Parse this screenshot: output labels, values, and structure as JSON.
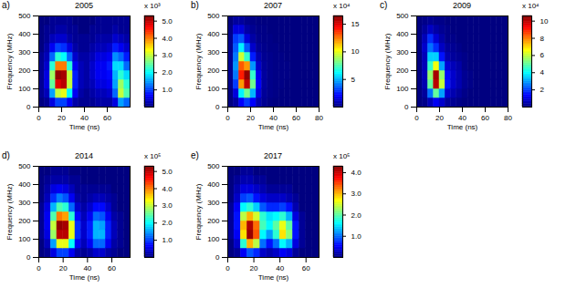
{
  "chart_data": [
    {
      "type": "heatmap",
      "title": "2005",
      "panel_label": "a)",
      "x_label": "Time (ns)",
      "y_label": "Frequency (MHz)",
      "xlim": [
        0,
        80
      ],
      "xticks": [
        0,
        20,
        40,
        60
      ],
      "ylim": [
        0,
        500
      ],
      "yticks": [
        0,
        100,
        200,
        300,
        400,
        500
      ],
      "x_bins": [
        0,
        5,
        10,
        15,
        20,
        25,
        30,
        35,
        40,
        45,
        50,
        55,
        60,
        65,
        70,
        75,
        80
      ],
      "y_bins": [
        0,
        50,
        100,
        150,
        200,
        250,
        300,
        350,
        400,
        450,
        500
      ],
      "cells": [
        [
          0,
          0.1,
          0.5,
          1.0,
          1.0,
          0.6,
          0.2,
          0.1,
          0.1,
          0.1,
          0.2,
          0.2,
          0.2,
          0.5,
          1.5,
          1.2
        ],
        [
          0.1,
          0.3,
          1.5,
          3.0,
          3.2,
          2.0,
          0.6,
          0.2,
          0.1,
          0.2,
          0.3,
          0.3,
          0.4,
          1.2,
          3.0,
          2.4
        ],
        [
          0.1,
          0.5,
          2.5,
          4.8,
          5.0,
          3.0,
          0.8,
          0.3,
          0.2,
          0.3,
          0.5,
          0.5,
          0.6,
          1.5,
          2.8,
          2.2
        ],
        [
          0.1,
          0.5,
          2.8,
          5.2,
          5.1,
          3.0,
          0.8,
          0.3,
          0.2,
          0.4,
          0.6,
          0.6,
          0.7,
          1.6,
          2.2,
          1.8
        ],
        [
          0.1,
          0.4,
          2.2,
          4.0,
          4.0,
          2.2,
          0.6,
          0.3,
          0.2,
          0.4,
          0.6,
          0.6,
          0.8,
          1.8,
          1.8,
          1.2
        ],
        [
          0.1,
          0.3,
          1.2,
          2.2,
          2.0,
          1.2,
          0.4,
          0.2,
          0.2,
          0.3,
          0.5,
          0.5,
          0.6,
          1.4,
          1.2,
          0.8
        ],
        [
          0,
          0.2,
          0.6,
          1.0,
          0.9,
          0.5,
          0.2,
          0.1,
          0.1,
          0.2,
          0.3,
          0.3,
          0.4,
          0.8,
          0.6,
          0.4
        ],
        [
          0,
          0.1,
          0.3,
          0.4,
          0.4,
          0.2,
          0.1,
          0.1,
          0.1,
          0.1,
          0.2,
          0.2,
          0.2,
          0.4,
          0.3,
          0.2
        ],
        [
          0,
          0.1,
          0.1,
          0.2,
          0.2,
          0.1,
          0.1,
          0,
          0,
          0.1,
          0.1,
          0.1,
          0.1,
          0.2,
          0.1,
          0.1
        ],
        [
          0,
          0,
          0.1,
          0.1,
          0.1,
          0.1,
          0,
          0,
          0,
          0,
          0.1,
          0.1,
          0.1,
          0.1,
          0.1,
          0.1
        ]
      ],
      "colorbar_range": [
        0,
        5.3
      ],
      "colorbar_ticks": [
        1,
        2,
        3,
        4,
        5
      ],
      "colorbar_label": "x 10³"
    },
    {
      "type": "heatmap",
      "title": "2007",
      "panel_label": "b)",
      "x_label": "Time (ns)",
      "y_label": "Frequency (MHz)",
      "xlim": [
        0,
        80
      ],
      "xticks": [
        0,
        20,
        40,
        60,
        80
      ],
      "ylim": [
        0,
        500
      ],
      "yticks": [
        0,
        100,
        200,
        300,
        400,
        500
      ],
      "x_bins": [
        0,
        5,
        10,
        15,
        20,
        25,
        30,
        35,
        40,
        45,
        50,
        55,
        60,
        65,
        70,
        75,
        80
      ],
      "y_bins": [
        0,
        50,
        100,
        150,
        200,
        250,
        300,
        350,
        400,
        450,
        500
      ],
      "cells": [
        [
          0,
          0.5,
          2.0,
          3.0,
          2.0,
          0.8,
          0.3,
          0.1,
          0,
          0,
          0,
          0,
          0,
          0,
          0,
          0
        ],
        [
          0,
          1.5,
          6.0,
          8.0,
          5.0,
          1.5,
          0.4,
          0.2,
          0.1,
          0,
          0,
          0,
          0,
          0,
          0,
          0
        ],
        [
          0.2,
          3.0,
          12.0,
          15.5,
          8.0,
          2.0,
          0.5,
          0.2,
          0.1,
          0.1,
          0,
          0,
          0,
          0,
          0,
          0
        ],
        [
          0.3,
          4.0,
          14.0,
          16.2,
          7.0,
          1.8,
          0.5,
          0.2,
          0.1,
          0.1,
          0.1,
          0,
          0,
          0,
          0,
          0
        ],
        [
          0.3,
          4.5,
          13.0,
          12.0,
          4.5,
          1.2,
          0.4,
          0.2,
          0.1,
          0.1,
          0.1,
          0,
          0,
          0,
          0,
          0
        ],
        [
          0.3,
          4.0,
          9.5,
          7.0,
          2.5,
          0.8,
          0.3,
          0.2,
          0.1,
          0.1,
          0,
          0,
          0,
          0,
          0,
          0
        ],
        [
          0.2,
          3.5,
          6.0,
          3.5,
          1.2,
          0.4,
          0.2,
          0.1,
          0.1,
          0,
          0,
          0,
          0,
          0,
          0,
          0
        ],
        [
          0.2,
          3.0,
          3.5,
          1.5,
          0.6,
          0.2,
          0.1,
          0.1,
          0,
          0,
          0,
          0,
          0,
          0,
          0,
          0
        ],
        [
          0.1,
          1.5,
          1.5,
          0.6,
          0.3,
          0.1,
          0.1,
          0,
          0,
          0,
          0,
          0,
          0,
          0,
          0,
          0
        ],
        [
          0,
          0.5,
          0.5,
          0.2,
          0.1,
          0,
          0,
          0,
          0,
          0,
          0,
          0,
          0,
          0,
          0,
          0
        ]
      ],
      "colorbar_range": [
        0,
        16.5
      ],
      "colorbar_ticks": [
        5,
        10,
        15
      ],
      "colorbar_label": "x 10⁴"
    },
    {
      "type": "heatmap",
      "title": "2009",
      "panel_label": "c)",
      "x_label": "Time (ns)",
      "y_label": "Frequency (MHz)",
      "xlim": [
        0,
        80
      ],
      "xticks": [
        0,
        20,
        40,
        60,
        80
      ],
      "ylim": [
        0,
        500
      ],
      "yticks": [
        0,
        100,
        200,
        300,
        400,
        500
      ],
      "x_bins": [
        0,
        5,
        10,
        15,
        20,
        25,
        30,
        35,
        40,
        45,
        50,
        55,
        60,
        65,
        70,
        75,
        80
      ],
      "y_bins": [
        0,
        50,
        100,
        150,
        200,
        250,
        300,
        350,
        400,
        450,
        500
      ],
      "cells": [
        [
          0,
          0.1,
          0.6,
          1.2,
          0.8,
          0.3,
          0.2,
          0.1,
          0,
          0,
          0,
          0,
          0,
          0,
          0,
          0
        ],
        [
          0,
          0.3,
          2.5,
          5.0,
          3.0,
          0.8,
          0.5,
          0.3,
          0.1,
          0,
          0,
          0,
          0,
          0,
          0,
          0
        ],
        [
          0,
          0.5,
          5.0,
          10.0,
          6.0,
          1.5,
          0.8,
          0.5,
          0.2,
          0.1,
          0,
          0,
          0,
          0,
          0,
          0
        ],
        [
          0,
          0.6,
          5.5,
          10.2,
          5.5,
          1.4,
          0.8,
          0.5,
          0.2,
          0.1,
          0,
          0,
          0,
          0,
          0,
          0
        ],
        [
          0,
          0.6,
          4.5,
          6.5,
          3.0,
          0.9,
          0.6,
          0.4,
          0.1,
          0,
          0,
          0,
          0,
          0,
          0,
          0
        ],
        [
          0,
          0.6,
          3.5,
          3.5,
          1.5,
          0.5,
          0.3,
          0.2,
          0.1,
          0,
          0,
          0,
          0,
          0,
          0,
          0
        ],
        [
          0,
          0.8,
          2.5,
          1.8,
          0.7,
          0.3,
          0.2,
          0.1,
          0,
          0,
          0,
          0,
          0,
          0,
          0,
          0
        ],
        [
          0,
          0.6,
          1.8,
          0.9,
          0.4,
          0.1,
          0.1,
          0,
          0,
          0,
          0,
          0,
          0,
          0,
          0,
          0
        ],
        [
          0,
          0.3,
          0.7,
          0.4,
          0.2,
          0.1,
          0,
          0,
          0,
          0,
          0,
          0,
          0,
          0,
          0,
          0
        ],
        [
          0,
          0.1,
          0.2,
          0.1,
          0.1,
          0,
          0,
          0,
          0,
          0,
          0,
          0,
          0,
          0,
          0,
          0
        ]
      ],
      "colorbar_range": [
        0,
        10.6
      ],
      "colorbar_ticks": [
        2,
        4,
        6,
        8,
        10
      ],
      "colorbar_label": "x 10⁴"
    },
    {
      "type": "heatmap",
      "title": "2014",
      "panel_label": "d)",
      "x_label": "Time (ns)",
      "y_label": "Frequency (MHz)",
      "xlim": [
        0,
        75
      ],
      "xticks": [
        0,
        20,
        40,
        60
      ],
      "ylim": [
        0,
        500
      ],
      "yticks": [
        0,
        100,
        200,
        300,
        400,
        500
      ],
      "x_bins": [
        0,
        5,
        10,
        15,
        20,
        25,
        30,
        35,
        40,
        45,
        50,
        55,
        60,
        65,
        70,
        75
      ],
      "y_bins": [
        0,
        50,
        100,
        150,
        200,
        250,
        300,
        350,
        400,
        450,
        500
      ],
      "cells": [
        [
          0,
          0.1,
          0.5,
          1.0,
          1.0,
          0.6,
          0.2,
          0.1,
          0.2,
          0.4,
          0.4,
          0.2,
          0.1,
          0,
          0
        ],
        [
          0,
          0.3,
          1.5,
          3.2,
          3.2,
          2.0,
          0.6,
          0.3,
          0.6,
          1.2,
          1.2,
          0.6,
          0.2,
          0.1,
          0
        ],
        [
          0.1,
          0.5,
          2.8,
          5.0,
          5.0,
          3.2,
          0.9,
          0.4,
          0.8,
          1.6,
          1.6,
          0.8,
          0.3,
          0.1,
          0
        ],
        [
          0.1,
          0.6,
          3.0,
          5.2,
          5.1,
          3.2,
          0.9,
          0.4,
          0.8,
          1.6,
          1.5,
          0.8,
          0.3,
          0.1,
          0
        ],
        [
          0.1,
          0.6,
          2.4,
          4.0,
          3.8,
          2.2,
          0.7,
          0.3,
          0.6,
          1.2,
          1.1,
          0.6,
          0.2,
          0.1,
          0
        ],
        [
          0.1,
          0.5,
          1.6,
          2.4,
          2.2,
          1.2,
          0.4,
          0.2,
          0.4,
          0.7,
          0.7,
          0.4,
          0.1,
          0,
          0
        ],
        [
          0,
          0.3,
          0.9,
          1.3,
          1.1,
          0.6,
          0.2,
          0.1,
          0.2,
          0.3,
          0.3,
          0.2,
          0.1,
          0,
          0
        ],
        [
          0,
          0.2,
          0.5,
          0.6,
          0.5,
          0.3,
          0.1,
          0.1,
          0.1,
          0.1,
          0.1,
          0.1,
          0,
          0,
          0
        ],
        [
          0,
          0.1,
          0.2,
          0.2,
          0.2,
          0.1,
          0.1,
          0,
          0,
          0,
          0,
          0,
          0,
          0,
          0
        ],
        [
          0,
          0,
          0.1,
          0.1,
          0.1,
          0,
          0,
          0,
          0,
          0,
          0,
          0,
          0,
          0,
          0
        ]
      ],
      "colorbar_range": [
        0,
        5.3
      ],
      "colorbar_ticks": [
        1,
        2,
        3,
        4,
        5
      ],
      "colorbar_label": "x 10⁵"
    },
    {
      "type": "heatmap",
      "title": "2017",
      "panel_label": "e)",
      "x_label": "Time (ns)",
      "y_label": "Frequency (MHz)",
      "xlim": [
        0,
        70
      ],
      "xticks": [
        0,
        20,
        40,
        60
      ],
      "ylim": [
        0,
        500
      ],
      "yticks": [
        0,
        100,
        200,
        300,
        400,
        500
      ],
      "x_bins": [
        0,
        5,
        10,
        15,
        20,
        25,
        30,
        35,
        40,
        45,
        50,
        55,
        60,
        65,
        70
      ],
      "y_bins": [
        0,
        50,
        100,
        150,
        200,
        250,
        300,
        350,
        400,
        450,
        500
      ],
      "cells": [
        [
          0,
          0.1,
          0.5,
          0.9,
          0.7,
          0.3,
          0.2,
          0.3,
          0.5,
          0.4,
          0.1,
          0,
          0,
          0
        ],
        [
          0,
          0.3,
          1.8,
          3.0,
          2.4,
          1.0,
          0.6,
          1.0,
          1.6,
          1.3,
          0.4,
          0.1,
          0,
          0
        ],
        [
          0.1,
          0.5,
          2.8,
          4.2,
          3.4,
          1.6,
          1.2,
          1.8,
          2.8,
          2.2,
          0.6,
          0.1,
          0,
          0
        ],
        [
          0.1,
          0.6,
          3.0,
          4.1,
          3.3,
          1.9,
          1.6,
          2.0,
          2.6,
          2.0,
          0.6,
          0.1,
          0,
          0
        ],
        [
          0.1,
          0.6,
          2.4,
          3.0,
          2.5,
          1.8,
          1.5,
          1.6,
          1.8,
          1.3,
          0.4,
          0.1,
          0,
          0
        ],
        [
          0.1,
          0.5,
          1.6,
          1.8,
          1.4,
          0.9,
          0.7,
          0.7,
          0.8,
          0.6,
          0.2,
          0,
          0,
          0
        ],
        [
          0,
          0.3,
          0.8,
          0.9,
          0.6,
          0.4,
          0.3,
          0.3,
          0.3,
          0.2,
          0.1,
          0,
          0,
          0
        ],
        [
          0,
          0.2,
          0.4,
          0.4,
          0.3,
          0.2,
          0.1,
          0.1,
          0.1,
          0.1,
          0,
          0,
          0,
          0
        ],
        [
          0,
          0.1,
          0.2,
          0.2,
          0.1,
          0.1,
          0,
          0,
          0,
          0,
          0,
          0,
          0,
          0
        ],
        [
          0,
          0,
          0.1,
          0.1,
          0,
          0,
          0,
          0,
          0,
          0,
          0,
          0,
          0,
          0
        ]
      ],
      "colorbar_range": [
        0,
        4.3
      ],
      "colorbar_ticks": [
        1,
        2,
        3,
        4
      ],
      "colorbar_label": "x 10⁵"
    }
  ]
}
